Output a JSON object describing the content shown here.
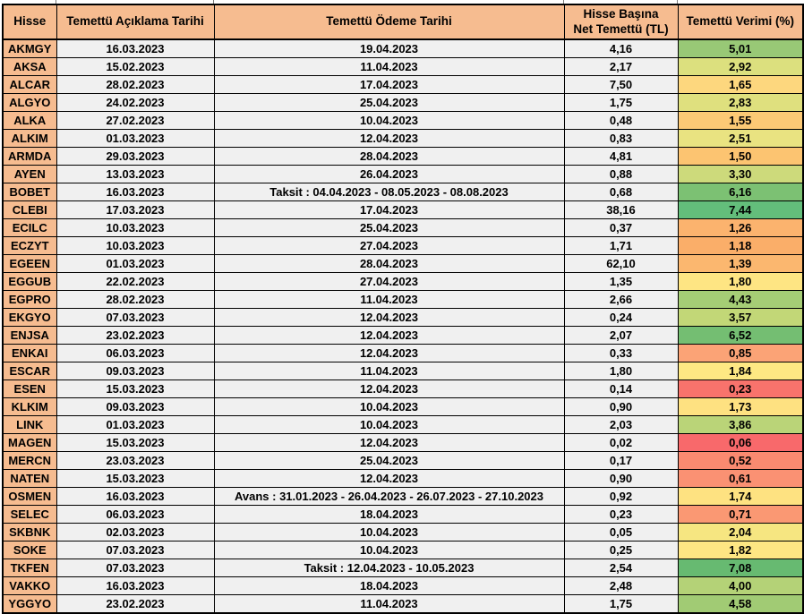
{
  "colors": {
    "header_bg": "#F6BC90",
    "ticker_bg": "#F6BC90",
    "cell_bg": "#F0F0F0",
    "border": "#000000",
    "yield_scale_min": "#F8696B",
    "yield_scale_mid": "#FFEB84",
    "yield_scale_max": "#63BE7B"
  },
  "table": {
    "columns": [
      {
        "key": "ticker",
        "label": "Hisse"
      },
      {
        "key": "announce",
        "label": "Temettü Açıklama Tarihi"
      },
      {
        "key": "payment",
        "label": "Temettü Ödeme Tarihi"
      },
      {
        "key": "net",
        "label": "Hisse Başına\nNet Temettü (TL)"
      },
      {
        "key": "yield",
        "label": "Temettü Verimi (%)"
      }
    ],
    "rows": [
      {
        "ticker": "AKMGY",
        "announce": "16.03.2023",
        "payment": "19.04.2023",
        "net": "4,16",
        "yield": "5,01",
        "yield_color": "#98C876"
      },
      {
        "ticker": "AKSA",
        "announce": "15.02.2023",
        "payment": "11.04.2023",
        "net": "2,17",
        "yield": "2,92",
        "yield_color": "#DCE07E"
      },
      {
        "ticker": "ALCAR",
        "announce": "28.02.2023",
        "payment": "17.04.2023",
        "net": "7,50",
        "yield": "1,65",
        "yield_color": "#FDD77E"
      },
      {
        "ticker": "ALGYO",
        "announce": "24.02.2023",
        "payment": "25.04.2023",
        "net": "1,75",
        "yield": "2,83",
        "yield_color": "#DFE07E"
      },
      {
        "ticker": "ALKA",
        "announce": "27.02.2023",
        "payment": "10.04.2023",
        "net": "0,48",
        "yield": "1,55",
        "yield_color": "#FCC975"
      },
      {
        "ticker": "ALKIM",
        "announce": "01.03.2023",
        "payment": "12.04.2023",
        "net": "0,83",
        "yield": "2,51",
        "yield_color": "#E9E381"
      },
      {
        "ticker": "ARMDA",
        "announce": "29.03.2023",
        "payment": "28.04.2023",
        "net": "4,81",
        "yield": "1,50",
        "yield_color": "#FCC471"
      },
      {
        "ticker": "AYEN",
        "announce": "13.03.2023",
        "payment": "26.04.2023",
        "net": "0,88",
        "yield": "3,30",
        "yield_color": "#CDDA7B"
      },
      {
        "ticker": "BOBET",
        "announce": "16.03.2023",
        "payment": "Taksit : 04.04.2023 - 08.05.2023 - 08.08.2023",
        "net": "0,68",
        "yield": "6,16",
        "yield_color": "#7CC173"
      },
      {
        "ticker": "CLEBI",
        "announce": "17.03.2023",
        "payment": "17.04.2023",
        "net": "38,16",
        "yield": "7,44",
        "yield_color": "#63BE7B"
      },
      {
        "ticker": "ECILC",
        "announce": "10.03.2023",
        "payment": "25.04.2023",
        "net": "0,37",
        "yield": "1,26",
        "yield_color": "#FBB36E"
      },
      {
        "ticker": "ECZYT",
        "announce": "10.03.2023",
        "payment": "27.04.2023",
        "net": "1,71",
        "yield": "1,18",
        "yield_color": "#FAAE69"
      },
      {
        "ticker": "EGEEN",
        "announce": "01.03.2023",
        "payment": "28.04.2023",
        "net": "62,10",
        "yield": "1,39",
        "yield_color": "#FBB76F"
      },
      {
        "ticker": "EGGUB",
        "announce": "22.02.2023",
        "payment": "27.04.2023",
        "net": "1,35",
        "yield": "1,80",
        "yield_color": "#FEE583"
      },
      {
        "ticker": "EGPRO",
        "announce": "28.02.2023",
        "payment": "11.04.2023",
        "net": "2,66",
        "yield": "4,43",
        "yield_color": "#A5CD75"
      },
      {
        "ticker": "EKGYO",
        "announce": "07.03.2023",
        "payment": "12.04.2023",
        "net": "0,24",
        "yield": "3,57",
        "yield_color": "#C2D777"
      },
      {
        "ticker": "ENJSA",
        "announce": "23.02.2023",
        "payment": "12.04.2023",
        "net": "2,07",
        "yield": "6,52",
        "yield_color": "#74BE72"
      },
      {
        "ticker": "ENKAI",
        "announce": "06.03.2023",
        "payment": "12.04.2023",
        "net": "0,33",
        "yield": "0,85",
        "yield_color": "#FBA376"
      },
      {
        "ticker": "ESCAR",
        "announce": "09.03.2023",
        "payment": "11.04.2023",
        "net": "1,80",
        "yield": "1,84",
        "yield_color": "#FEE883"
      },
      {
        "ticker": "ESEN",
        "announce": "15.03.2023",
        "payment": "12.04.2023",
        "net": "0,14",
        "yield": "0,23",
        "yield_color": "#F8736C"
      },
      {
        "ticker": "KLKIM",
        "announce": "09.03.2023",
        "payment": "10.04.2023",
        "net": "0,90",
        "yield": "1,73",
        "yield_color": "#FEE181"
      },
      {
        "ticker": "LINK",
        "announce": "01.03.2023",
        "payment": "10.04.2023",
        "net": "2,03",
        "yield": "3,86",
        "yield_color": "#BAD478"
      },
      {
        "ticker": "MAGEN",
        "announce": "15.03.2023",
        "payment": "12.04.2023",
        "net": "0,02",
        "yield": "0,06",
        "yield_color": "#F8696B"
      },
      {
        "ticker": "MERCN",
        "announce": "23.03.2023",
        "payment": "25.04.2023",
        "net": "0,17",
        "yield": "0,52",
        "yield_color": "#FA8A70"
      },
      {
        "ticker": "NATEN",
        "announce": "15.03.2023",
        "payment": "12.04.2023",
        "net": "0,90",
        "yield": "0,61",
        "yield_color": "#FA9173"
      },
      {
        "ticker": "OSMEN",
        "announce": "16.03.2023",
        "payment": "Avans : 31.01.2023 - 26.04.2023 - 26.07.2023 - 27.10.2023",
        "net": "0,92",
        "yield": "1,74",
        "yield_color": "#FEE281"
      },
      {
        "ticker": "SELEC",
        "announce": "06.03.2023",
        "payment": "18.04.2023",
        "net": "0,23",
        "yield": "0,71",
        "yield_color": "#FA9873"
      },
      {
        "ticker": "SKBNK",
        "announce": "02.03.2023",
        "payment": "10.04.2023",
        "net": "0,05",
        "yield": "2,04",
        "yield_color": "#F6E681"
      },
      {
        "ticker": "SOKE",
        "announce": "07.03.2023",
        "payment": "10.04.2023",
        "net": "0,25",
        "yield": "1,82",
        "yield_color": "#FEE683"
      },
      {
        "ticker": "TKFEN",
        "announce": "07.03.2023",
        "payment": "Taksit : 12.04.2023 - 10.05.2023",
        "net": "2,54",
        "yield": "7,08",
        "yield_color": "#67BA71"
      },
      {
        "ticker": "VAKKO",
        "announce": "16.03.2023",
        "payment": "18.04.2023",
        "net": "2,48",
        "yield": "4,00",
        "yield_color": "#B4D277"
      },
      {
        "ticker": "YGGYO",
        "announce": "23.02.2023",
        "payment": "11.04.2023",
        "net": "1,75",
        "yield": "4,58",
        "yield_color": "#A1CB74"
      }
    ]
  }
}
